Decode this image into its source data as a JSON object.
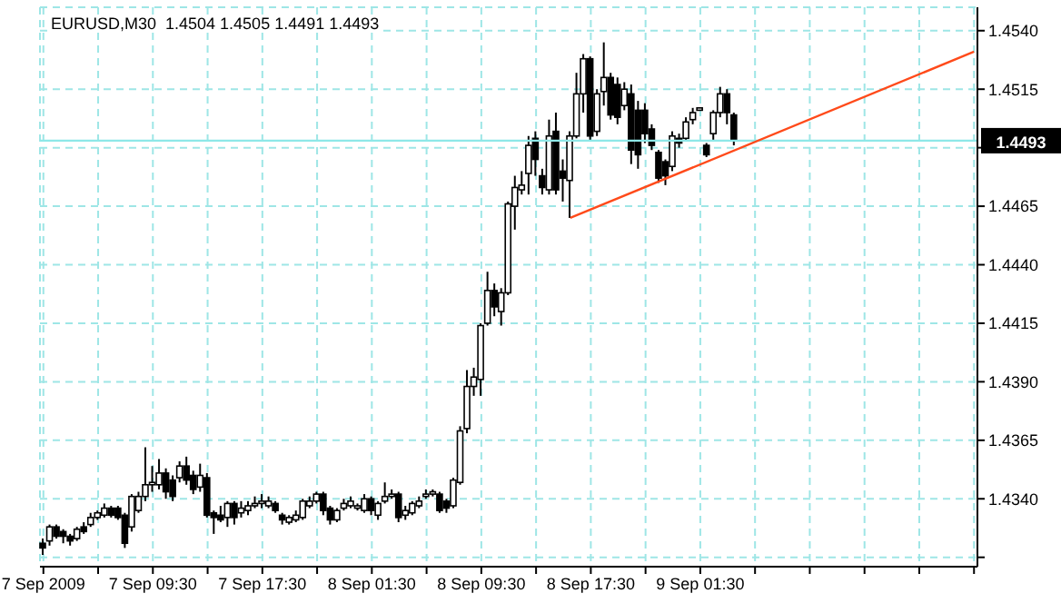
{
  "chart_data": {
    "type": "candlestick",
    "title": "EURUSD,M30  1.4504 1.4505 1.4491 1.4493",
    "categories": [
      "7 Sep 2009",
      null,
      null,
      null,
      null,
      null,
      null,
      null,
      null,
      null,
      null,
      null,
      null,
      null,
      null,
      null,
      "7 Sep 09:30",
      null,
      null,
      null,
      null,
      null,
      null,
      null,
      null,
      null,
      null,
      null,
      null,
      null,
      null,
      null,
      "7 Sep 17:30",
      null,
      null,
      null,
      null,
      null,
      null,
      null,
      null,
      null,
      null,
      null,
      null,
      null,
      null,
      null,
      "8 Sep 01:30",
      null,
      null,
      null,
      null,
      null,
      null,
      null,
      null,
      null,
      null,
      null,
      null,
      null,
      null,
      null,
      "8 Sep 09:30",
      null,
      null,
      null,
      null,
      null,
      null,
      null,
      null,
      null,
      null,
      null,
      null,
      null,
      null,
      null,
      "8 Sep 17:30",
      null,
      null,
      null,
      null,
      null,
      null,
      null,
      null,
      null,
      null,
      null,
      null,
      null,
      null,
      null,
      "9 Sep 01:30",
      null,
      null,
      null,
      null,
      null,
      null,
      null,
      null,
      null,
      null,
      null,
      null,
      null,
      null,
      null,
      null,
      null,
      null,
      null,
      null,
      null,
      null,
      null,
      null,
      null,
      null,
      null,
      null,
      null,
      null,
      null,
      null,
      null,
      null,
      null,
      null,
      null,
      null,
      null,
      null
    ],
    "ohlc": [
      [
        1.4321,
        1.4323,
        1.4316,
        1.4319
      ],
      [
        1.4322,
        1.4329,
        1.432,
        1.4328
      ],
      [
        1.4328,
        1.4329,
        1.4323,
        1.4324
      ],
      [
        1.4326,
        1.4327,
        1.4321,
        1.4324
      ],
      [
        1.4324,
        1.4325,
        1.432,
        1.4322
      ],
      [
        1.4323,
        1.4328,
        1.4322,
        1.4327
      ],
      [
        1.4328,
        1.433,
        1.4325,
        1.4326
      ],
      [
        1.4329,
        1.4334,
        1.4328,
        1.4332
      ],
      [
        1.4332,
        1.4335,
        1.4331,
        1.4334
      ],
      [
        1.4333,
        1.4338,
        1.4332,
        1.4336
      ],
      [
        1.4336,
        1.4337,
        1.4332,
        1.4333
      ],
      [
        1.4336,
        1.4337,
        1.4331,
        1.4332
      ],
      [
        1.4333,
        1.4334,
        1.4319,
        1.4321
      ],
      [
        1.4328,
        1.4342,
        1.4326,
        1.4341
      ],
      [
        1.4335,
        1.4343,
        1.4334,
        1.4341
      ],
      [
        1.4341,
        1.4362,
        1.4339,
        1.4346
      ],
      [
        1.4346,
        1.4354,
        1.4343,
        1.4347
      ],
      [
        1.4346,
        1.4357,
        1.4344,
        1.4351
      ],
      [
        1.4351,
        1.4353,
        1.434,
        1.4343
      ],
      [
        1.4348,
        1.435,
        1.4339,
        1.4341
      ],
      [
        1.4349,
        1.4356,
        1.4347,
        1.4354
      ],
      [
        1.4354,
        1.4358,
        1.4346,
        1.4348
      ],
      [
        1.435,
        1.4352,
        1.4342,
        1.4344
      ],
      [
        1.4345,
        1.4355,
        1.4343,
        1.435
      ],
      [
        1.4349,
        1.4351,
        1.4332,
        1.4333
      ],
      [
        1.4334,
        1.4335,
        1.4325,
        1.4332
      ],
      [
        1.4333,
        1.4337,
        1.433,
        1.4331
      ],
      [
        1.4332,
        1.4339,
        1.4328,
        1.4338
      ],
      [
        1.4338,
        1.4339,
        1.4329,
        1.4332
      ],
      [
        1.4334,
        1.4339,
        1.4332,
        1.4336
      ],
      [
        1.4335,
        1.4339,
        1.4333,
        1.4337
      ],
      [
        1.4337,
        1.4341,
        1.4336,
        1.4338
      ],
      [
        1.4338,
        1.4342,
        1.4336,
        1.4339
      ],
      [
        1.4337,
        1.4341,
        1.4336,
        1.4339
      ],
      [
        1.4338,
        1.4339,
        1.4334,
        1.4335
      ],
      [
        1.4333,
        1.4334,
        1.4329,
        1.4331
      ],
      [
        1.433,
        1.4333,
        1.4329,
        1.4332
      ],
      [
        1.4331,
        1.4335,
        1.433,
        1.4333
      ],
      [
        1.4332,
        1.434,
        1.4331,
        1.4339
      ],
      [
        1.4337,
        1.4341,
        1.4336,
        1.4339
      ],
      [
        1.4339,
        1.4343,
        1.4338,
        1.4342
      ],
      [
        1.4342,
        1.4343,
        1.4333,
        1.4335
      ],
      [
        1.4336,
        1.4337,
        1.4329,
        1.4331
      ],
      [
        1.4331,
        1.4336,
        1.433,
        1.4335
      ],
      [
        1.4336,
        1.434,
        1.4335,
        1.4338
      ],
      [
        1.4337,
        1.4341,
        1.4336,
        1.4339
      ],
      [
        1.4336,
        1.4338,
        1.4335,
        1.4337
      ],
      [
        1.4335,
        1.4342,
        1.4334,
        1.434
      ],
      [
        1.434,
        1.4341,
        1.4333,
        1.4335
      ],
      [
        1.4333,
        1.4339,
        1.4331,
        1.4338
      ],
      [
        1.4339,
        1.4347,
        1.4338,
        1.4341
      ],
      [
        1.4341,
        1.4344,
        1.434,
        1.4342
      ],
      [
        1.4342,
        1.4343,
        1.433,
        1.4332
      ],
      [
        1.4333,
        1.4337,
        1.4331,
        1.4335
      ],
      [
        1.4334,
        1.4339,
        1.4333,
        1.4338
      ],
      [
        1.4337,
        1.4341,
        1.4336,
        1.4339
      ],
      [
        1.4341,
        1.4344,
        1.434,
        1.4342
      ],
      [
        1.4342,
        1.4344,
        1.4341,
        1.4343
      ],
      [
        1.4342,
        1.4343,
        1.4334,
        1.4335
      ],
      [
        1.4339,
        1.434,
        1.4334,
        1.4336
      ],
      [
        1.4337,
        1.4349,
        1.4336,
        1.4348
      ],
      [
        1.4347,
        1.4371,
        1.4346,
        1.4369
      ],
      [
        1.437,
        1.4395,
        1.4368,
        1.4388
      ],
      [
        1.4388,
        1.4396,
        1.4384,
        1.4392
      ],
      [
        1.4391,
        1.4415,
        1.4384,
        1.4414
      ],
      [
        1.4415,
        1.4437,
        1.4414,
        1.4429
      ],
      [
        1.4429,
        1.4432,
        1.4418,
        1.4422
      ],
      [
        1.442,
        1.443,
        1.4414,
        1.4428
      ],
      [
        1.4428,
        1.4467,
        1.4427,
        1.4466
      ],
      [
        1.4465,
        1.4478,
        1.4455,
        1.4473
      ],
      [
        1.4472,
        1.448,
        1.447,
        1.4474
      ],
      [
        1.4479,
        1.4495,
        1.447,
        1.4491
      ],
      [
        1.4494,
        1.4497,
        1.4478,
        1.4485
      ],
      [
        1.4478,
        1.4481,
        1.447,
        1.4473
      ],
      [
        1.4472,
        1.4502,
        1.447,
        1.4495
      ],
      [
        1.4497,
        1.4505,
        1.447,
        1.4472
      ],
      [
        1.448,
        1.4485,
        1.4467,
        1.4477
      ],
      [
        1.4476,
        1.4497,
        1.446,
        1.4495
      ],
      [
        1.4495,
        1.4522,
        1.4494,
        1.4513
      ],
      [
        1.4513,
        1.453,
        1.4505,
        1.4528
      ],
      [
        1.4528,
        1.4529,
        1.4493,
        1.4495
      ],
      [
        1.4497,
        1.4515,
        1.4495,
        1.4513
      ],
      [
        1.4514,
        1.4535,
        1.4508,
        1.452
      ],
      [
        1.452,
        1.4522,
        1.4502,
        1.4504
      ],
      [
        1.4517,
        1.452,
        1.45,
        1.4503
      ],
      [
        1.4508,
        1.4518,
        1.4506,
        1.4515
      ],
      [
        1.4513,
        1.4517,
        1.4483,
        1.4489
      ],
      [
        1.4506,
        1.451,
        1.4481,
        1.4487
      ],
      [
        1.4506,
        1.4509,
        1.4492,
        1.4496
      ],
      [
        1.4498,
        1.45,
        1.4489,
        1.4491
      ],
      [
        1.4488,
        1.4489,
        1.4475,
        1.4477
      ],
      [
        1.4484,
        1.4485,
        1.4474,
        1.4478
      ],
      [
        1.4482,
        1.4497,
        1.448,
        1.4495
      ],
      [
        1.4494,
        1.4496,
        1.449,
        1.4492
      ],
      [
        1.4494,
        1.4503,
        1.4493,
        1.4501
      ],
      [
        1.4502,
        1.4507,
        1.45,
        1.4505
      ],
      [
        1.4506,
        1.4507,
        1.4506,
        1.4507
      ],
      [
        1.4491,
        1.4492,
        1.4486,
        1.4487
      ],
      [
        1.4496,
        1.4506,
        1.4493,
        1.4505
      ],
      [
        1.4505,
        1.4516,
        1.4503,
        1.4513
      ],
      [
        1.4513,
        1.4515,
        1.45,
        1.4505
      ],
      [
        1.4504,
        1.4505,
        1.4491,
        1.4493
      ],
      null,
      null,
      null,
      null,
      null,
      null,
      null,
      null,
      null,
      null,
      null,
      null,
      null,
      null,
      null,
      null,
      null,
      null,
      null,
      null,
      null,
      null,
      null,
      null,
      null,
      null,
      null,
      null,
      null,
      null,
      null,
      null,
      null,
      null,
      null
    ],
    "series": [
      {
        "type": "line",
        "color": "#ff4a1a",
        "values": [
          null,
          null,
          null,
          null,
          null,
          null,
          null,
          null,
          null,
          null,
          null,
          null,
          null,
          null,
          null,
          null,
          null,
          null,
          null,
          null,
          null,
          null,
          null,
          null,
          null,
          null,
          null,
          null,
          null,
          null,
          null,
          null,
          null,
          null,
          null,
          null,
          null,
          null,
          null,
          null,
          null,
          null,
          null,
          null,
          null,
          null,
          null,
          null,
          null,
          null,
          null,
          null,
          null,
          null,
          null,
          null,
          null,
          null,
          null,
          null,
          null,
          null,
          null,
          null,
          null,
          null,
          null,
          null,
          null,
          null,
          null,
          null,
          null,
          null,
          null,
          null,
          null,
          1.446,
          null,
          null,
          null,
          null,
          null,
          null,
          null,
          null,
          null,
          null,
          null,
          null,
          null,
          null,
          null,
          null,
          null,
          null,
          null,
          null,
          null,
          null,
          null,
          null,
          null,
          null,
          null,
          null,
          null,
          null,
          null,
          null,
          null,
          null,
          null,
          null,
          null,
          null,
          null,
          null,
          null,
          null,
          null,
          null,
          null,
          null,
          null,
          null,
          null,
          null,
          null,
          null,
          null,
          null,
          null,
          null,
          null,
          null,
          1.4531
        ]
      }
    ],
    "ylim": [
      1.4311,
      1.455
    ],
    "yticks": [
      {
        "value": 1.4315,
        "label": null
      },
      {
        "value": 1.434,
        "label": "1.4340"
      },
      {
        "value": 1.4365,
        "label": "1.4365"
      },
      {
        "value": 1.439,
        "label": "1.4390"
      },
      {
        "value": 1.4415,
        "label": "1.4415"
      },
      {
        "value": 1.444,
        "label": "1.4440"
      },
      {
        "value": 1.4465,
        "label": "1.4465"
      },
      {
        "value": 1.449,
        "label": null
      },
      {
        "value": 1.4515,
        "label": "1.4515"
      },
      {
        "value": 1.454,
        "label": "1.4540"
      }
    ],
    "ref_lines": [
      {
        "axis": "y",
        "value": 1.4493,
        "label": "1.4493",
        "color": "#8ee8e8"
      }
    ],
    "grid": true
  }
}
